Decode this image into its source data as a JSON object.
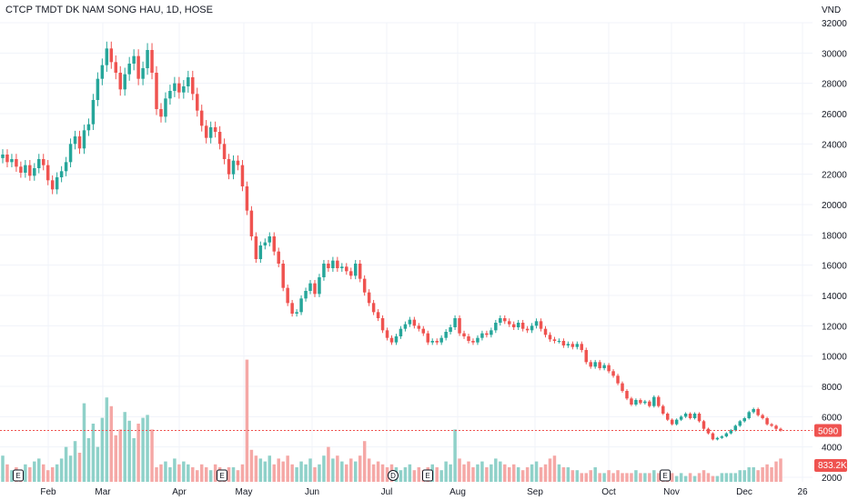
{
  "header": {
    "title": "CTCP TMDT DK NAM SONG HAU, 1D, HOSE"
  },
  "chart_data": {
    "type": "candlestick",
    "title": "CTCP TMDT DK NAM SONG HAU, 1D, HOSE",
    "currency_label": "VND",
    "y_ticks": [
      32000,
      30000,
      28000,
      26000,
      24000,
      22000,
      20000,
      18000,
      16000,
      14000,
      12000,
      10000,
      8000,
      6000,
      4000,
      2000
    ],
    "x_ticks": [
      "Feb",
      "Mar",
      "Apr",
      "May",
      "Jun",
      "Jul",
      "Aug",
      "Sep",
      "Oct",
      "Nov",
      "Dec",
      "26"
    ],
    "last_price_label": "5090",
    "last_price": 5090,
    "volume_label": "833.2K",
    "grid": true,
    "colors": {
      "up": "#26a69a",
      "down": "#ef5350",
      "up_volume": "#8fd1c9",
      "down_volume": "#f5a8a6",
      "grid": "#f0f3fa",
      "price_line": "#ef5350"
    },
    "events": [
      {
        "label": "E",
        "month": "Jan"
      },
      {
        "label": "E",
        "month": "Apr"
      },
      {
        "label": "D",
        "month": "Jul"
      },
      {
        "label": "E",
        "month": "Jul"
      },
      {
        "label": "E",
        "month": "Oct"
      }
    ],
    "series": [
      {
        "name": "close",
        "values": [
          23300,
          22800,
          23000,
          22500,
          22100,
          22600,
          21900,
          22400,
          23000,
          22600,
          21600,
          21000,
          21800,
          22200,
          22800,
          24000,
          24500,
          23700,
          24900,
          25300,
          26900,
          28300,
          29200,
          30300,
          29400,
          28700,
          27600,
          28600,
          29300,
          29800,
          28300,
          29000,
          30200,
          28700,
          26300,
          25800,
          27000,
          27500,
          28000,
          27400,
          27800,
          28400,
          27300,
          26200,
          25200,
          24400,
          25100,
          24800,
          24000,
          23000,
          22000,
          22900,
          22600,
          21200,
          19600,
          17900,
          16400,
          17300,
          17500,
          17900,
          16900,
          16100,
          14500,
          13500,
          12800,
          12900,
          13800,
          14300,
          14800,
          14100,
          15200,
          16100,
          15800,
          16300,
          15800,
          15900,
          15600,
          15300,
          16100,
          15100,
          14200,
          13500,
          12900,
          12500,
          11700,
          11200,
          10900,
          11300,
          11800,
          12100,
          12400,
          12000,
          11800,
          11500,
          10900,
          11000,
          10900,
          11200,
          11600,
          11900,
          12500,
          11500,
          11300,
          11000,
          10900,
          11200,
          11500,
          11400,
          11700,
          12200,
          12500,
          12300,
          12100,
          11900,
          12200,
          11800,
          11700,
          12000,
          12300,
          11800,
          11400,
          11100,
          11000,
          11000,
          10700,
          10800,
          10600,
          10800,
          10400,
          9600,
          9300,
          9600,
          9200,
          9400,
          9000,
          8700,
          8200,
          7700,
          7200,
          6800,
          7100,
          6900,
          7000,
          6700,
          7300,
          6700,
          6200,
          5800,
          5500,
          5800,
          6000,
          6200,
          5900,
          6200,
          5700,
          5200,
          4900,
          4500,
          4600,
          4700,
          4900,
          5100,
          5400,
          5700,
          5900,
          6300,
          6500,
          6100,
          5900,
          5500,
          5400,
          5200,
          5090
        ]
      },
      {
        "name": "volume",
        "values": [
          0.9,
          0.6,
          0.4,
          0.5,
          0.3,
          0.6,
          0.5,
          0.7,
          0.8,
          0.6,
          0.4,
          0.5,
          0.6,
          0.8,
          1.2,
          0.9,
          1.4,
          1.0,
          2.7,
          1.5,
          2.0,
          1.2,
          2.2,
          2.9,
          2.6,
          1.6,
          1.8,
          2.4,
          2.1,
          1.5,
          2.0,
          2.2,
          2.3,
          1.8,
          0.5,
          0.6,
          0.7,
          0.5,
          0.8,
          0.6,
          0.7,
          0.6,
          0.5,
          0.4,
          0.6,
          0.5,
          0.4,
          0.6,
          0.5,
          0.4,
          0.5,
          0.5,
          0.4,
          0.6,
          4.2,
          1.1,
          0.9,
          0.8,
          0.7,
          0.9,
          0.6,
          0.8,
          0.7,
          0.9,
          0.6,
          0.5,
          0.7,
          0.6,
          0.8,
          0.5,
          0.6,
          0.9,
          1.2,
          0.8,
          0.9,
          0.7,
          0.6,
          0.8,
          0.7,
          0.9,
          1.4,
          0.8,
          0.6,
          0.7,
          0.6,
          0.5,
          0.6,
          0.5,
          0.4,
          0.5,
          0.6,
          0.4,
          0.5,
          0.4,
          0.5,
          0.6,
          0.5,
          0.4,
          0.7,
          0.6,
          1.8,
          0.8,
          0.6,
          0.7,
          0.5,
          0.6,
          0.7,
          0.5,
          0.6,
          0.8,
          0.7,
          0.6,
          0.5,
          0.6,
          0.5,
          0.4,
          0.5,
          0.6,
          0.7,
          0.5,
          0.6,
          0.8,
          0.9,
          0.6,
          0.5,
          0.5,
          0.4,
          0.4,
          0.3,
          0.3,
          0.4,
          0.5,
          0.3,
          0.3,
          0.4,
          0.3,
          0.4,
          0.3,
          0.3,
          0.3,
          0.4,
          0.3,
          0.3,
          0.3,
          0.4,
          0.3,
          0.2,
          0.2,
          0.3,
          0.2,
          0.3,
          0.2,
          0.3,
          0.2,
          0.3,
          0.4,
          0.3,
          0.2,
          0.2,
          0.3,
          0.3,
          0.3,
          0.3,
          0.4,
          0.4,
          0.5,
          0.5,
          0.4,
          0.5,
          0.6,
          0.5,
          0.7,
          0.8
        ]
      }
    ]
  }
}
